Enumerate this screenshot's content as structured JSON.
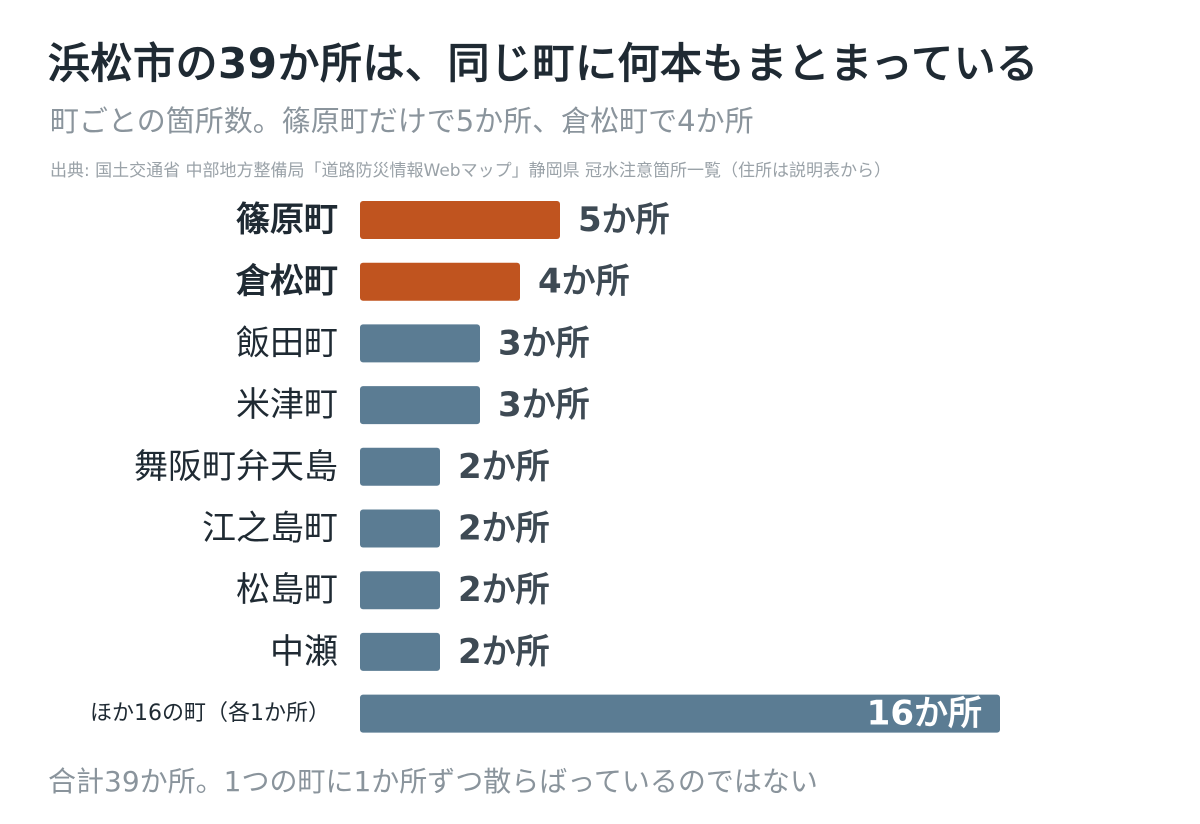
{
  "header": {
    "title": "浜松市の39か所は、同じ町に何本もまとまっている",
    "subtitle": "町ごとの箇所数。篠原町だけで5か所、倉松町で4か所",
    "source": "出典: 国土交通省 中部地方整備局「道路防災情報Webマップ」静岡県 冠水注意箇所一覧（住所は説明表から）"
  },
  "footer": {
    "note": "合計39か所。1つの町に1か所ずつ散らばっているのではない"
  },
  "colors": {
    "highlight": "#c0541f",
    "default": "#5b7c93",
    "label_text": "#1f2a33",
    "value_text": "#3e4a54",
    "inside_value_text": "#ffffff"
  },
  "chart_data": {
    "type": "bar",
    "orientation": "horizontal",
    "categories": [
      "篠原町",
      "倉松町",
      "飯田町",
      "米津町",
      "舞阪町弁天島",
      "江之島町",
      "松島町",
      "中瀬",
      "ほか16の町（各1か所）"
    ],
    "values": [
      5,
      4,
      3,
      3,
      2,
      2,
      2,
      2,
      16
    ],
    "value_labels": [
      "5か所",
      "4か所",
      "3か所",
      "3か所",
      "2か所",
      "2か所",
      "2か所",
      "2か所",
      "16か所"
    ],
    "highlighted": [
      true,
      true,
      false,
      false,
      false,
      false,
      false,
      false,
      false
    ],
    "value_label_inside": [
      false,
      false,
      false,
      false,
      false,
      false,
      false,
      false,
      true
    ],
    "small_label": [
      false,
      false,
      false,
      false,
      false,
      false,
      false,
      false,
      true
    ],
    "xlim": [
      0,
      16
    ],
    "title": "浜松市の39か所は、同じ町に何本もまとまっている",
    "xlabel": "",
    "ylabel": "",
    "grid": false,
    "legend": "none"
  }
}
